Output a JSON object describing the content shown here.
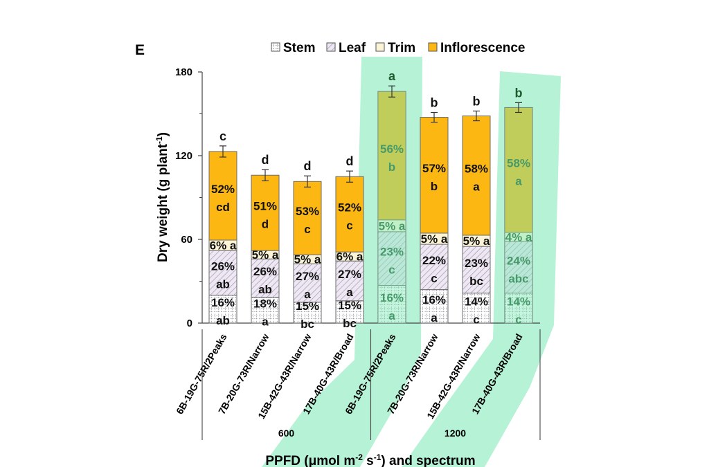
{
  "chart_data": {
    "type": "bar",
    "stacked": true,
    "panel_label": "E",
    "ylabel": "Dry weight (g plant",
    "ylabel_sup": "-1",
    "ylabel_close": ")",
    "xlabel_parts": [
      "PPFD (μmol m",
      "-2",
      " s",
      "-1",
      ") and spectrum"
    ],
    "ylim": [
      0,
      180
    ],
    "yticks": [
      "0",
      "60",
      "120",
      "180"
    ],
    "categories": [
      "6B-19G-75R/2Peaks",
      "7B-20G-73R/Narrow",
      "15B-42G-43R/Narrow",
      "17B-40G-43R/Broad",
      "6B-19G-75R/2Peaks",
      "7B-20G-73R/Narrow",
      "15B-42G-43R/Narrow",
      "17B-40G-43R/Broad"
    ],
    "groups": [
      {
        "label": "600",
        "start": 0,
        "end": 3
      },
      {
        "label": "1200",
        "start": 4,
        "end": 7
      }
    ],
    "legend": [
      "Stem",
      "Leaf",
      "Trim",
      "Inflorescence"
    ],
    "colors": {
      "stem": "#ffffff",
      "stem_pattern": "#a8a8b4",
      "leaf": "#eee8f2",
      "leaf_pattern": "#a596b8",
      "trim": "#fcf4d6",
      "inflorescence": "#fcb712",
      "highlight": "#7ae8b4",
      "error": "#333333"
    },
    "series": [
      {
        "name": "Stem",
        "values": [
          20,
          18.5,
          15,
          16,
          27,
          24,
          21.5,
          21.5
        ],
        "pct": [
          "16%",
          "18%",
          "15%",
          "15%",
          "16%",
          "16%",
          "14%",
          "14%"
        ],
        "letter": [
          "ab",
          "a",
          "bc",
          "bc",
          "a",
          "a",
          "c",
          "c"
        ]
      },
      {
        "name": "Leaf",
        "values": [
          32,
          27.5,
          27.5,
          28.5,
          38.5,
          32.5,
          33.5,
          37
        ],
        "pct": [
          "26%",
          "26%",
          "27%",
          "27%",
          "23%",
          "22%",
          "23%",
          "24%"
        ],
        "letter": [
          "ab",
          "ab",
          "a",
          "a",
          "c",
          "c",
          "bc",
          "abc"
        ]
      },
      {
        "name": "Trim",
        "values": [
          7.5,
          6,
          6.5,
          6.5,
          8.5,
          8,
          8,
          6.5
        ],
        "pct": [
          "6%",
          "5%",
          "5%",
          "6%",
          "5%",
          "5%",
          "5%",
          "4%"
        ],
        "letter": [
          "a",
          "a",
          "a",
          "a",
          "a",
          "a",
          "a",
          "a"
        ]
      },
      {
        "name": "Inflorescence",
        "values": [
          63.5,
          54,
          52.5,
          54,
          92,
          83,
          85.5,
          89.5
        ],
        "pct": [
          "52%",
          "51%",
          "53%",
          "52%",
          "56%",
          "57%",
          "58%",
          "58%"
        ],
        "letter": [
          "cd",
          "d",
          "c",
          "c",
          "b",
          "b",
          "a",
          "a"
        ]
      }
    ],
    "totals": [
      123,
      106,
      101.5,
      105,
      166,
      147.5,
      148.5,
      154.5
    ],
    "error": [
      4,
      4,
      4,
      4,
      4,
      3.5,
      3.5,
      3.5
    ],
    "total_letters": [
      "c",
      "d",
      "d",
      "d",
      "a",
      "b",
      "b",
      "b"
    ],
    "highlighted_bars": [
      4,
      7
    ]
  }
}
